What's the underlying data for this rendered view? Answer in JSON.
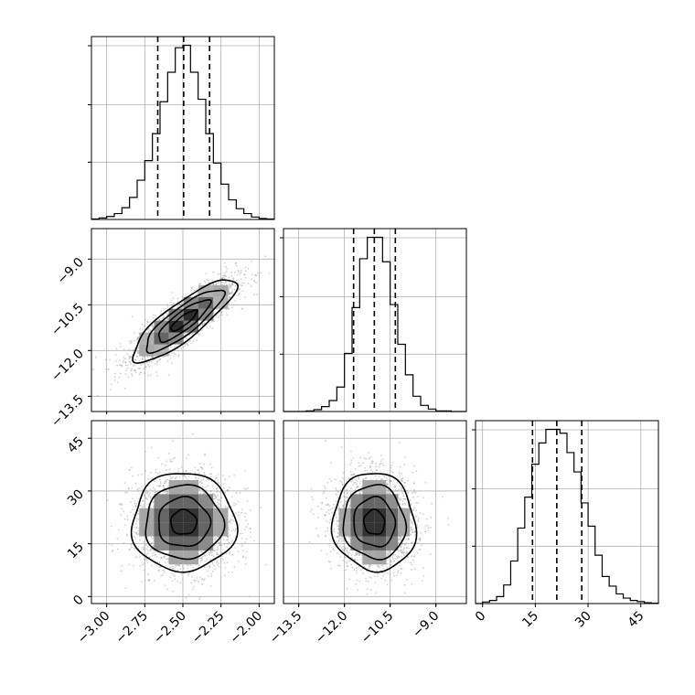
{
  "chart_data": {
    "type": "corner",
    "parameters": [
      {
        "range": [
          -3.1,
          -1.9
        ],
        "ticks": [
          -3.0,
          -2.75,
          -2.5,
          -2.25,
          -2.0
        ],
        "tick_labels": [
          "−3.00",
          "−2.75",
          "−2.50",
          "−2.25",
          "−2.00"
        ],
        "quantiles": [
          -2.665,
          -2.495,
          -2.325
        ],
        "histogram": {
          "bin_edges": [
            -3.1,
            -3.05,
            -3.0,
            -2.95,
            -2.9,
            -2.85,
            -2.8,
            -2.75,
            -2.7,
            -2.65,
            -2.6,
            -2.55,
            -2.5,
            -2.45,
            -2.4,
            -2.35,
            -2.3,
            -2.25,
            -2.2,
            -2.15,
            -2.1,
            -2.05,
            -2.0,
            -1.95,
            -1.9
          ],
          "counts": [
            1,
            3,
            6,
            12,
            24,
            45,
            80,
            120,
            175,
            240,
            300,
            350,
            355,
            300,
            245,
            175,
            115,
            72,
            40,
            22,
            12,
            5,
            2,
            1
          ]
        }
      },
      {
        "range": [
          -14.0,
          -8.0
        ],
        "ticks": [
          -13.5,
          -12.0,
          -10.5,
          -9.0
        ],
        "tick_labels": [
          "−13.5",
          "−12.0",
          "−10.5",
          "−9.0"
        ],
        "quantiles": [
          -11.7,
          -11.02,
          -10.33
        ],
        "histogram": {
          "bin_edges": [
            -14.0,
            -13.75,
            -13.5,
            -13.25,
            -13.0,
            -12.75,
            -12.5,
            -12.25,
            -12.0,
            -11.75,
            -11.5,
            -11.25,
            -11.0,
            -10.75,
            -10.5,
            -10.25,
            -10.0,
            -9.75,
            -9.5,
            -9.25,
            -9.0,
            -8.75,
            -8.5,
            -8.25,
            -8.0
          ],
          "counts": [
            0,
            0,
            0,
            1,
            3,
            8,
            18,
            40,
            95,
            170,
            250,
            285,
            285,
            245,
            175,
            110,
            60,
            25,
            10,
            4,
            1,
            1,
            0,
            0
          ]
        }
      },
      {
        "range": [
          -2,
          50
        ],
        "ticks": [
          0,
          15,
          30,
          45
        ],
        "tick_labels": [
          "0",
          "15",
          "30",
          "45"
        ],
        "quantiles": [
          14.2,
          21.1,
          28.2
        ],
        "histogram": {
          "bin_edges": [
            -2,
            0,
            2,
            4,
            6,
            8,
            10,
            12,
            14,
            16,
            18,
            20,
            22,
            24,
            26,
            28,
            30,
            32,
            34,
            36,
            38,
            40,
            42,
            44,
            46,
            48,
            50
          ],
          "counts": [
            0,
            4,
            8,
            18,
            48,
            110,
            195,
            275,
            360,
            415,
            450,
            450,
            440,
            390,
            340,
            260,
            200,
            125,
            70,
            45,
            25,
            14,
            8,
            5,
            2,
            1
          ]
        }
      }
    ],
    "pairs": [
      {
        "x": 0,
        "y": 1,
        "mean": [
          -2.495,
          -11.02
        ],
        "sd": [
          0.17,
          0.68
        ],
        "corr": 0.85,
        "contour_levels_sigma": [
          0.5,
          1.0,
          1.5,
          2.0
        ]
      },
      {
        "x": 0,
        "y": 2,
        "mean": [
          -2.495,
          21.1
        ],
        "sd": [
          0.17,
          7.0
        ],
        "corr": 0.0,
        "contour_levels_sigma": [
          0.5,
          1.0,
          1.5,
          2.0
        ]
      },
      {
        "x": 1,
        "y": 2,
        "mean": [
          -11.02,
          21.1
        ],
        "sd": [
          0.68,
          7.0
        ],
        "corr": -0.05,
        "contour_levels_sigma": [
          0.5,
          1.0,
          1.5,
          2.0
        ]
      }
    ],
    "grid": true,
    "colors": {
      "line": "#000000",
      "points": "#9a9a9a",
      "grid": "#b0b0b0"
    }
  }
}
